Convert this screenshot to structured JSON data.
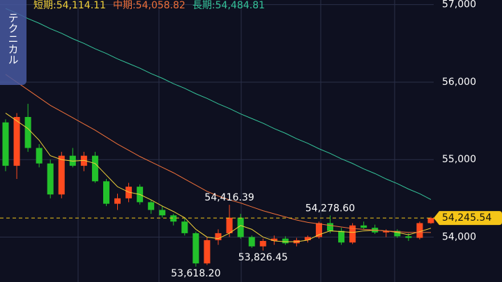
{
  "chart_data": {
    "type": "candlestick",
    "side_tab": "テクニカル",
    "up_color": "#ff4b1f",
    "down_color": "#23c22b",
    "candles": {
      "open": [
        55480,
        54920,
        55550,
        55150,
        54950,
        54550,
        55050,
        54920,
        55050,
        54720,
        54430,
        54500,
        54650,
        54450,
        54350,
        54280,
        54200,
        54050,
        53660,
        53960,
        54050,
        54250,
        54000,
        53880,
        53950,
        53980,
        53920,
        53960,
        54000,
        54180,
        54080,
        53930,
        54150,
        54120,
        54060,
        54080,
        54010,
        53990,
        54180
      ],
      "high": [
        55520,
        55600,
        55720,
        55200,
        55000,
        55100,
        55150,
        55100,
        55100,
        54750,
        54560,
        54700,
        54680,
        54480,
        54400,
        54300,
        54240,
        54070,
        54000,
        54100,
        54416.39,
        54300,
        54020,
        53980,
        54020,
        54010,
        53990,
        54020,
        54200,
        54278.6,
        54120,
        54180,
        54200,
        54160,
        54100,
        54100,
        54050,
        54200,
        54260
      ],
      "low": [
        54850,
        54750,
        55100,
        54900,
        54500,
        54500,
        54900,
        54850,
        54700,
        54400,
        54350,
        54450,
        54420,
        54300,
        54250,
        54150,
        54020,
        53618.2,
        53640,
        53900,
        54000,
        53980,
        53860,
        53826.45,
        53900,
        53900,
        53880,
        53930,
        53980,
        54050,
        53900,
        53910,
        54100,
        54040,
        54000,
        53990,
        53950,
        53970,
        54170
      ],
      "close": [
        54920,
        55550,
        55150,
        54950,
        54550,
        55050,
        54920,
        55050,
        54720,
        54430,
        54500,
        54650,
        54450,
        54350,
        54280,
        54200,
        54050,
        53660,
        53960,
        54050,
        54250,
        54000,
        53880,
        53950,
        53980,
        53920,
        53960,
        54000,
        54180,
        54080,
        53930,
        54150,
        54120,
        54060,
        54080,
        54010,
        53990,
        54180,
        54245.54
      ]
    },
    "series": [
      {
        "name": "短期:54,114.11",
        "color": "#f2d23a",
        "values": [
          55600,
          55500,
          55400,
          55250,
          55050,
          55000,
          54980,
          54990,
          54950,
          54800,
          54650,
          54580,
          54550,
          54480,
          54400,
          54330,
          54250,
          54100,
          54000,
          53980,
          54050,
          54150,
          54100,
          54000,
          53950,
          53940,
          53940,
          53960,
          54030,
          54080,
          54070,
          54060,
          54080,
          54090,
          54080,
          54060,
          54030,
          54070,
          54114.11
        ]
      },
      {
        "name": "中期:54,058.82",
        "color": "#f0703a",
        "values": [
          56100,
          56000,
          55900,
          55800,
          55700,
          55620,
          55540,
          55460,
          55380,
          55290,
          55200,
          55120,
          55040,
          54970,
          54900,
          54830,
          54750,
          54670,
          54590,
          54530,
          54480,
          54440,
          54390,
          54340,
          54300,
          54260,
          54220,
          54190,
          54170,
          54150,
          54130,
          54110,
          54100,
          54090,
          54080,
          54070,
          54060,
          54060,
          54058.82
        ]
      },
      {
        "name": "長期:54,484.81",
        "color": "#35c49a",
        "values": [
          56950,
          56890,
          56820,
          56760,
          56690,
          56630,
          56560,
          56500,
          56430,
          56370,
          56300,
          56240,
          56180,
          56110,
          56050,
          55980,
          55920,
          55850,
          55790,
          55720,
          55660,
          55590,
          55530,
          55470,
          55400,
          55340,
          55270,
          55210,
          55140,
          55080,
          55010,
          54950,
          54880,
          54820,
          54750,
          54690,
          54620,
          54560,
          54484.81
        ]
      }
    ],
    "annotations": [
      {
        "label": "54,416.39",
        "value": 54416.39
      },
      {
        "label": "54,278.60",
        "value": 54278.6
      },
      {
        "label": "53,618.20",
        "value": 53618.2
      },
      {
        "label": "53,826.45",
        "value": 53826.45
      }
    ],
    "last_price": {
      "value": 54245.54,
      "label": "54,245.54",
      "color": "#f5c518"
    },
    "ylim": [
      53420,
      57060
    ],
    "yticks": [
      {
        "value": 54000,
        "label": "54,000"
      },
      {
        "value": 55000,
        "label": "55,000"
      },
      {
        "value": 56000,
        "label": "56,000"
      },
      {
        "value": 57000,
        "label": "57,000"
      }
    ],
    "grid": true
  }
}
